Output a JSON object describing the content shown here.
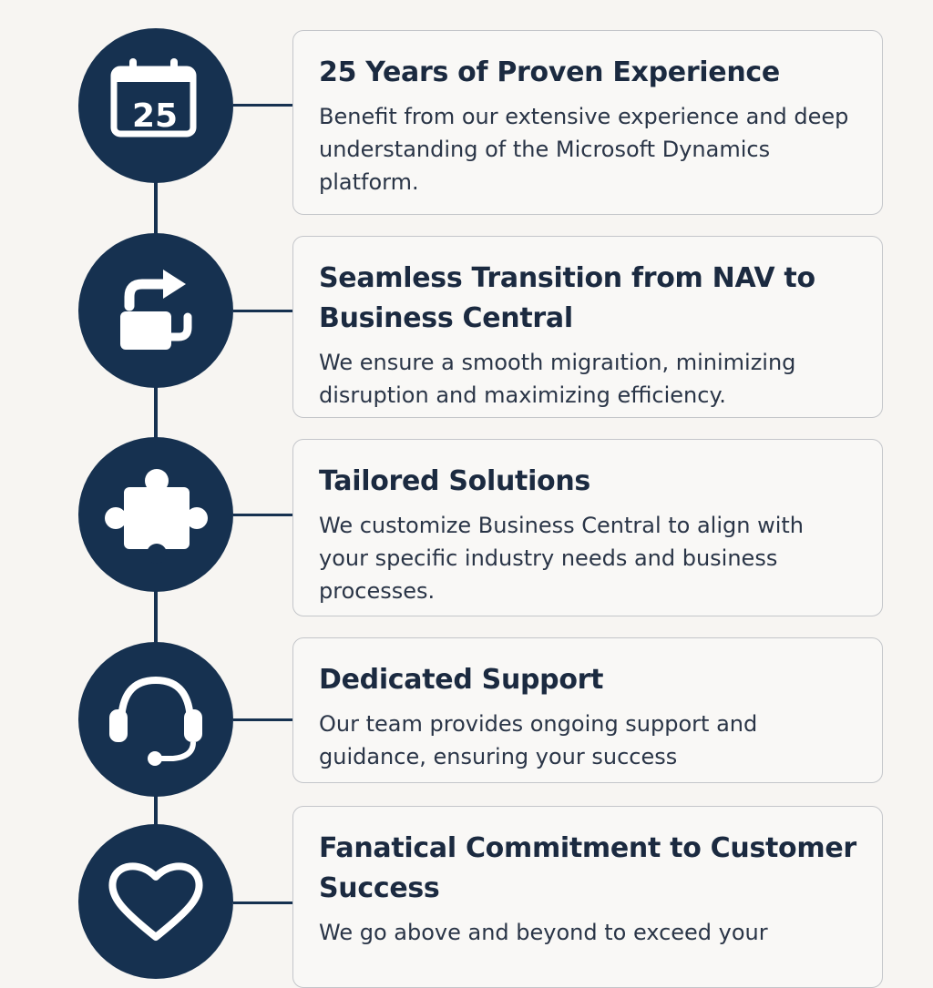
{
  "items": [
    {
      "icon": "calendar-icon",
      "icon_text": "25",
      "title": "25 Years of Proven Experience",
      "description": "Benefit from our extensive experience and deep understanding of the Microsoft Dynamics platform."
    },
    {
      "icon": "transition-arrows-icon",
      "title": "Seamless Transition from NAV to Business Central",
      "description": "We ensure a smooth migraıtion, minimizing disruption and maximizing efficiency."
    },
    {
      "icon": "puzzle-piece-icon",
      "title": "Tailored Solutions",
      "description": "We customize Business Central to align with your specific industry needs and business processes."
    },
    {
      "icon": "headset-icon",
      "title": "Dedicated Support",
      "description": "Our team provides ongoing support and guidance, ensuring your success"
    },
    {
      "icon": "heart-icon",
      "title": "Fanatical Commitment to Customer Success",
      "description": "We go above and beyond to exceed your"
    }
  ],
  "colors": {
    "background": "#f7f5f2",
    "accent": "#163150",
    "card_border": "#c4c6ca",
    "title_text": "#1b2a40"
  }
}
